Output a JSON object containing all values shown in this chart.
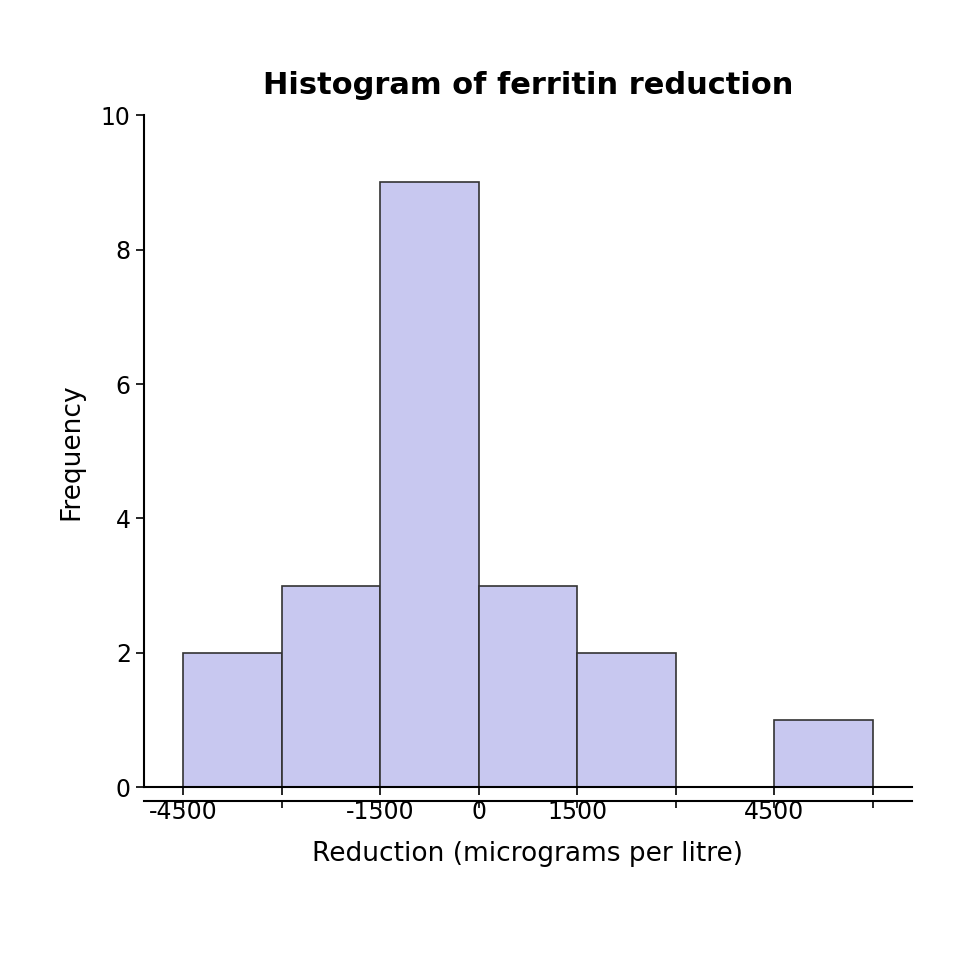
{
  "title": "Histogram of ferritin reduction",
  "xlabel": "Reduction (micrograms per litre)",
  "ylabel": "Frequency",
  "bin_edges": [
    -4500,
    -3000,
    -1500,
    0,
    1500,
    3000,
    4500,
    6000
  ],
  "frequencies": [
    2,
    3,
    9,
    3,
    2,
    0,
    1
  ],
  "bar_color": "#c8c8f0",
  "bar_edgecolor": "#333333",
  "ylim": [
    0,
    10
  ],
  "yticks": [
    0,
    2,
    4,
    6,
    8,
    10
  ],
  "xlim_left": -5100,
  "xlim_right": 6600,
  "xtick_shown_labels": [
    -4500,
    -1500,
    0,
    1500,
    4500
  ],
  "xtick_all_positions": [
    -4500,
    -3000,
    -1500,
    0,
    1500,
    3000,
    4500,
    6000
  ],
  "title_fontsize": 22,
  "label_fontsize": 19,
  "tick_fontsize": 17,
  "background_color": "#ffffff",
  "spine_linewidth": 1.5
}
